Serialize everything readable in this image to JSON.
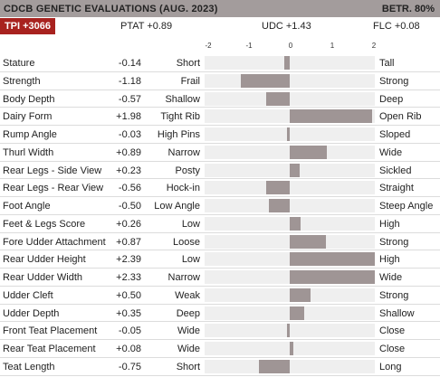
{
  "header": {
    "title": "CDCB GENETIC EVALUATIONS (AUG. 2023)",
    "reliability": "BETR. 80%"
  },
  "summary": {
    "tpi": "TPI +3066",
    "ptat": "PTAT +0.89",
    "udc": "UDC +1.43",
    "flc": "FLC +0.08"
  },
  "scale": {
    "min": -2,
    "max": 2,
    "ticks": [
      "-2",
      "-1",
      "0",
      "1",
      "2"
    ]
  },
  "colors": {
    "accent": "#a8221f",
    "header_bg": "#a39c9c",
    "bar": "#9f9595",
    "track": "#efefef"
  },
  "traits": [
    {
      "name": "Stature",
      "value": -0.14,
      "label": "-0.14",
      "low": "Short",
      "high": "Tall"
    },
    {
      "name": "Strength",
      "value": -1.18,
      "label": "-1.18",
      "low": "Frail",
      "high": "Strong"
    },
    {
      "name": "Body Depth",
      "value": -0.57,
      "label": "-0.57",
      "low": "Shallow",
      "high": "Deep"
    },
    {
      "name": "Dairy Form",
      "value": 1.98,
      "label": "+1.98",
      "low": "Tight Rib",
      "high": "Open Rib"
    },
    {
      "name": "Rump Angle",
      "value": -0.03,
      "label": "-0.03",
      "low": "High Pins",
      "high": "Sloped"
    },
    {
      "name": "Thurl Width",
      "value": 0.89,
      "label": "+0.89",
      "low": "Narrow",
      "high": "Wide"
    },
    {
      "name": "Rear Legs - Side View",
      "value": 0.23,
      "label": "+0.23",
      "low": "Posty",
      "high": "Sickled"
    },
    {
      "name": "Rear Legs - Rear View",
      "value": -0.56,
      "label": "-0.56",
      "low": "Hock-in",
      "high": "Straight"
    },
    {
      "name": "Foot Angle",
      "value": -0.5,
      "label": "-0.50",
      "low": "Low Angle",
      "high": "Steep Angle"
    },
    {
      "name": "Feet & Legs Score",
      "value": 0.26,
      "label": "+0.26",
      "low": "Low",
      "high": "High"
    },
    {
      "name": "Fore Udder Attachment",
      "value": 0.87,
      "label": "+0.87",
      "low": "Loose",
      "high": "Strong"
    },
    {
      "name": "Rear Udder Height",
      "value": 2.39,
      "label": "+2.39",
      "low": "Low",
      "high": "High"
    },
    {
      "name": "Rear Udder Width",
      "value": 2.33,
      "label": "+2.33",
      "low": "Narrow",
      "high": "Wide"
    },
    {
      "name": "Udder Cleft",
      "value": 0.5,
      "label": "+0.50",
      "low": "Weak",
      "high": "Strong"
    },
    {
      "name": "Udder Depth",
      "value": 0.35,
      "label": "+0.35",
      "low": "Deep",
      "high": "Shallow"
    },
    {
      "name": "Front Teat Placement",
      "value": -0.05,
      "label": "-0.05",
      "low": "Wide",
      "high": "Close"
    },
    {
      "name": "Rear Teat Placement",
      "value": 0.08,
      "label": "+0.08",
      "low": "Wide",
      "high": "Close"
    },
    {
      "name": "Teat Length",
      "value": -0.75,
      "label": "-0.75",
      "low": "Short",
      "high": "Long"
    }
  ]
}
